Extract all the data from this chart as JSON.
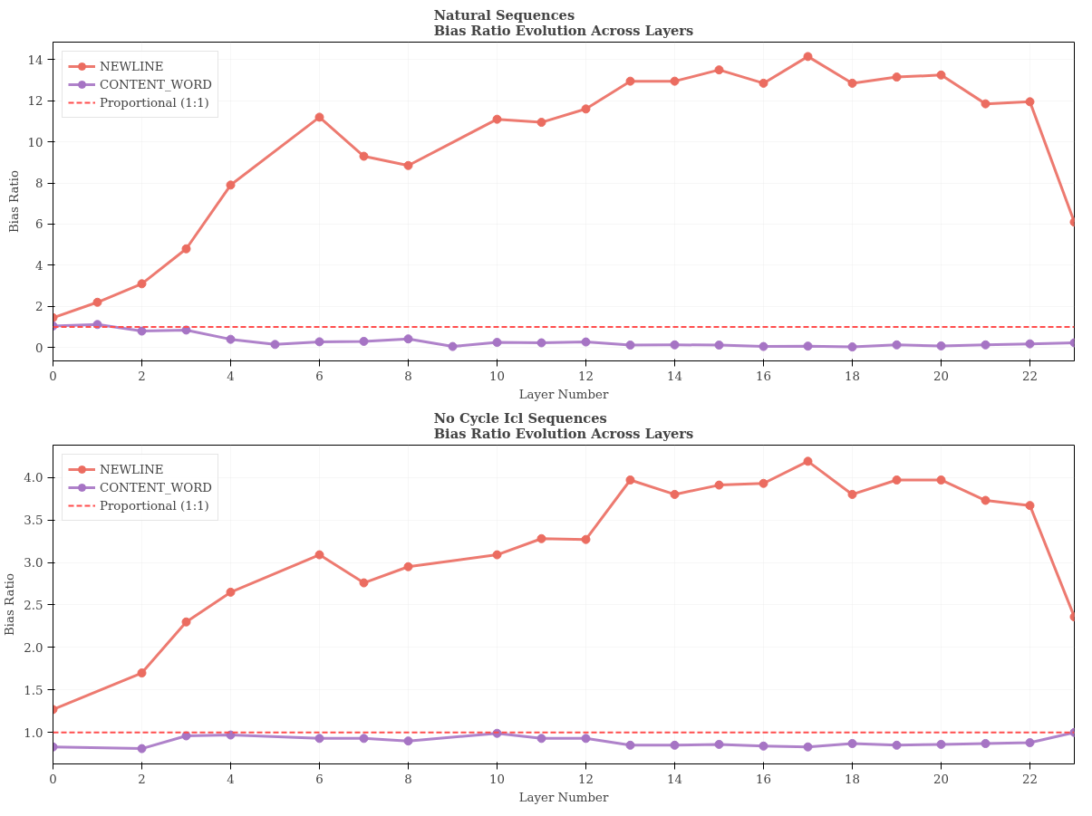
{
  "chart_data": [
    {
      "type": "line",
      "title": "Natural Sequences\nBias Ratio Evolution Across Layers",
      "xlabel": "Layer Number",
      "ylabel": "Bias Ratio",
      "xlim": [
        0,
        23
      ],
      "ylim": [
        -0.65,
        14.85
      ],
      "xticks": [
        0,
        2,
        4,
        6,
        8,
        10,
        12,
        14,
        16,
        18,
        20,
        22
      ],
      "yticks": [
        0,
        2,
        4,
        6,
        8,
        10,
        12,
        14
      ],
      "grid": true,
      "legend": "top left",
      "marker": "circle",
      "line_style": "solid",
      "series": [
        {
          "name": "NEWLINE",
          "color": "#eb6c60",
          "x": [
            0,
            1,
            2,
            3,
            4,
            6,
            7,
            8,
            10,
            11,
            12,
            13,
            14,
            15,
            16,
            17,
            18,
            19,
            20,
            21,
            22,
            23
          ],
          "values": [
            1.45,
            2.2,
            3.1,
            4.8,
            7.9,
            11.2,
            9.3,
            8.85,
            11.1,
            10.95,
            11.6,
            12.95,
            12.95,
            13.5,
            12.85,
            14.15,
            12.85,
            13.15,
            13.25,
            11.85,
            11.95,
            6.1
          ]
        },
        {
          "name": "CONTENT_WORD",
          "color": "#a674c4",
          "x": [
            0,
            1,
            2,
            3,
            4,
            5,
            6,
            7,
            8,
            9,
            10,
            11,
            12,
            13,
            14,
            15,
            16,
            17,
            18,
            19,
            20,
            21,
            22,
            23
          ],
          "values": [
            1.05,
            1.12,
            0.8,
            0.85,
            0.4,
            0.15,
            0.28,
            0.3,
            0.42,
            0.05,
            0.25,
            0.23,
            0.27,
            0.12,
            0.13,
            0.12,
            0.05,
            0.07,
            0.03,
            0.13,
            0.08,
            0.13,
            0.18,
            0.23
          ]
        }
      ],
      "ref_lines": [
        {
          "axis": "y",
          "value": 1,
          "label": "Proportional (1:1)",
          "color": "#ff4d4d",
          "line_style": "dashed"
        }
      ]
    },
    {
      "type": "line",
      "title": "No Cycle Icl Sequences\nBias Ratio Evolution Across Layers",
      "xlabel": "Layer Number",
      "ylabel": "Bias Ratio",
      "xlim": [
        0,
        23
      ],
      "ylim": [
        0.63,
        4.38
      ],
      "xticks": [
        0,
        2,
        4,
        6,
        8,
        10,
        12,
        14,
        16,
        18,
        20,
        22
      ],
      "yticks": [
        {
          "value": 1,
          "label": "1.0"
        },
        1.5,
        {
          "value": 2,
          "label": "2.0"
        },
        2.5,
        {
          "value": 3,
          "label": "3.0"
        },
        3.5,
        {
          "value": 4,
          "label": "4.0"
        }
      ],
      "grid": true,
      "legend": "top left",
      "marker": "circle",
      "line_style": "solid",
      "series": [
        {
          "name": "NEWLINE",
          "color": "#eb6c60",
          "x": [
            0,
            2,
            3,
            4,
            6,
            7,
            8,
            10,
            11,
            12,
            13,
            14,
            15,
            16,
            17,
            18,
            19,
            20,
            21,
            22,
            23
          ],
          "values": [
            1.27,
            1.7,
            2.3,
            2.65,
            3.09,
            2.76,
            2.95,
            3.09,
            3.28,
            3.27,
            3.97,
            3.8,
            3.91,
            3.93,
            4.19,
            3.8,
            3.97,
            3.97,
            3.73,
            3.67,
            2.36
          ]
        },
        {
          "name": "CONTENT_WORD",
          "color": "#a674c4",
          "x": [
            0,
            2,
            3,
            4,
            6,
            7,
            8,
            10,
            11,
            12,
            13,
            14,
            15,
            16,
            17,
            18,
            19,
            20,
            21,
            22,
            23
          ],
          "values": [
            0.83,
            0.81,
            0.96,
            0.97,
            0.93,
            0.93,
            0.9,
            0.99,
            0.93,
            0.93,
            0.85,
            0.85,
            0.86,
            0.84,
            0.83,
            0.87,
            0.85,
            0.86,
            0.87,
            0.88,
            1.0
          ]
        }
      ],
      "ref_lines": [
        {
          "axis": "y",
          "value": 1,
          "label": "Proportional (1:1)",
          "color": "#ff4d4d",
          "line_style": "dashed"
        }
      ]
    }
  ]
}
